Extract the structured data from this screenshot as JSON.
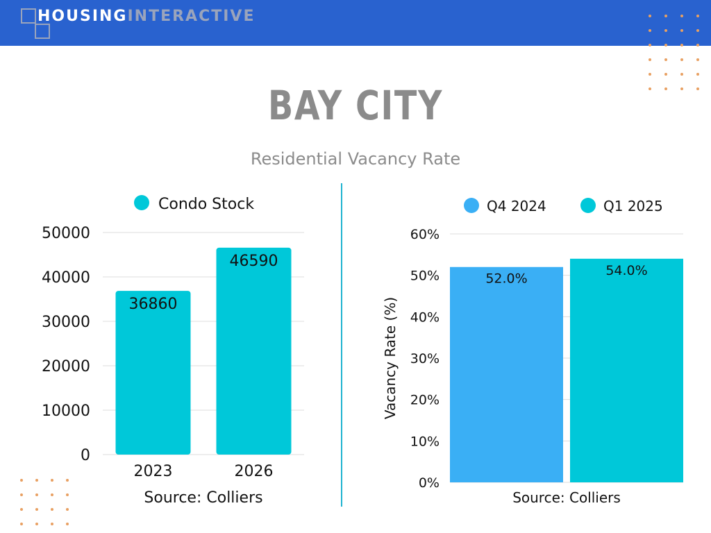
{
  "brand": {
    "part1": "HOUSING",
    "part2": "INTERACTIVE"
  },
  "title": "BAY CITY",
  "subtitle": "Residential Vacancy Rate",
  "colors": {
    "header": "#2962cf",
    "teal": "#00c8d9",
    "blue": "#3aaff5",
    "accent_dots": "#e8a062",
    "title_gray": "#8b8b8b"
  },
  "chart_data": [
    {
      "type": "bar",
      "categories": [
        "2023",
        "2026"
      ],
      "series": [
        {
          "name": "Condo Stock",
          "values": [
            36860,
            46590
          ],
          "color": "#00c8d9"
        }
      ],
      "data_labels": [
        "36860",
        "46590"
      ],
      "ylim": [
        0,
        50000
      ],
      "yticks": [
        0,
        10000,
        20000,
        30000,
        40000,
        50000
      ],
      "ytick_labels": [
        "0",
        "10000",
        "20000",
        "30000",
        "40000",
        "50000"
      ],
      "xlabel": "Source: Colliers",
      "ylabel": "",
      "grid": true,
      "legend": "top-center"
    },
    {
      "type": "bar",
      "categories": [
        ""
      ],
      "series": [
        {
          "name": "Q4 2024",
          "values": [
            52.0
          ],
          "color": "#3aaff5"
        },
        {
          "name": "Q1 2025",
          "values": [
            54.0
          ],
          "color": "#00c8d9"
        }
      ],
      "data_labels": [
        "52.0%",
        "54.0%"
      ],
      "ylim": [
        0,
        60
      ],
      "yticks": [
        0,
        10,
        20,
        30,
        40,
        50,
        60
      ],
      "ytick_labels": [
        "0%",
        "10%",
        "20%",
        "30%",
        "40%",
        "50%",
        "60%"
      ],
      "xlabel": "Source: Colliers",
      "ylabel": "Vacancy Rate (%)",
      "grid": true,
      "legend": "top-center"
    }
  ]
}
